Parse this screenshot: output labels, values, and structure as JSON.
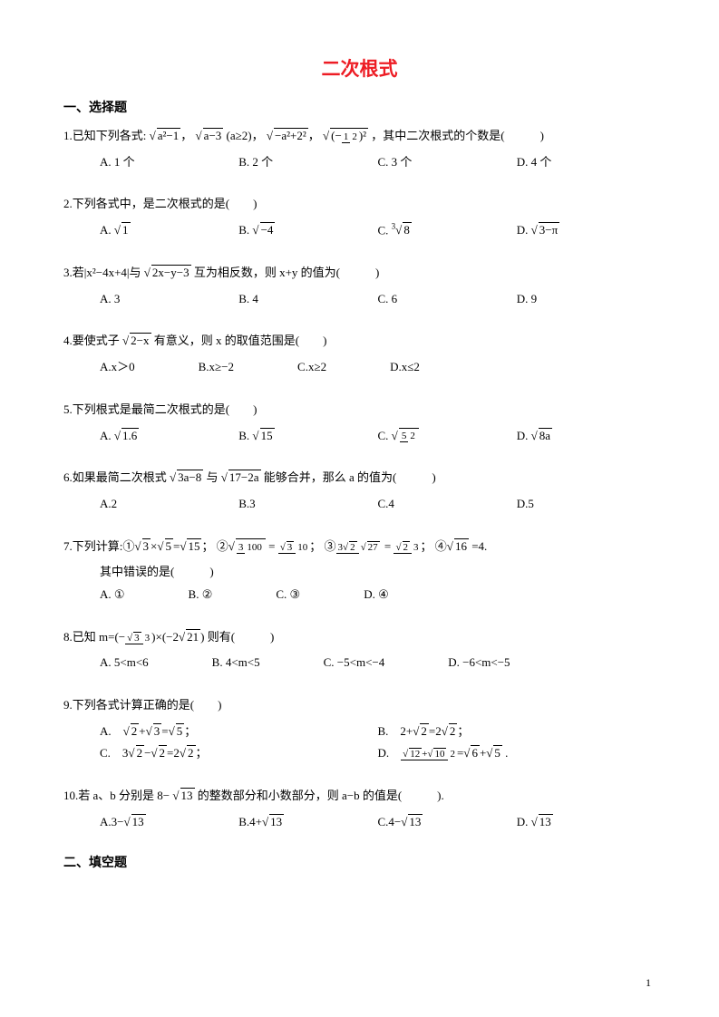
{
  "title": "二次根式",
  "section1": "一、选择题",
  "section2": "二、填空题",
  "page_number": "1",
  "q1": {
    "text_pre": "1.已知下列各式:",
    "expr1": "√(a²−1)",
    "expr2": "√(a−3)",
    "expr2_cond": " (a≥2)，",
    "expr3": "√(−a²+2²)",
    "expr4": "√(−1/2)²",
    "text_post": "，其中二次根式的个数是(　　　)",
    "A": "A. 1 个",
    "B": "B. 2 个",
    "C": "C. 3 个",
    "D": "D. 4 个"
  },
  "q2": {
    "text": "2.下列各式中，是二次根式的是(　　)",
    "A": "A. √1",
    "B": "B. √(−4)",
    "C": "C. ∛8",
    "D": "D. √(3−π)"
  },
  "q3": {
    "text_pre": "3.若|x²−4x+4|与",
    "expr": "√(2x−y−3)",
    "text_post": "互为相反数，则 x+y 的值为(　　　)",
    "A": "A. 3",
    "B": "B. 4",
    "C": "C. 6",
    "D": "D. 9"
  },
  "q4": {
    "text_pre": "4.要使式子",
    "expr": "√(2−x)",
    "text_post": "有意义，则 x 的取值范围是(　　)",
    "A": "A.x＞0",
    "B": "B.x≥−2",
    "C": "C.x≥2",
    "D": "D.x≤2"
  },
  "q5": {
    "text": "5.下列根式是最简二次根式的是(　　)",
    "A": "A. √1.6",
    "B": "B. √15",
    "C": "C. √(5/2)",
    "D": "D. √(8a)"
  },
  "q6": {
    "text_pre": "6.如果最简二次根式 ",
    "expr1": "√(3a−8)",
    "mid": " 与 ",
    "expr2": "√(17−2a)",
    "text_post": " 能够合并，那么 a 的值为(　　　)",
    "A": "A.2",
    "B": "B.3",
    "C": "C.4",
    "D": "D.5"
  },
  "q7": {
    "text": "7.下列计算:① √3×√5=√15；② √(3/100) = √3/10；③ (3√2)/√27 = √2/3；④ √16 =4.",
    "mid": "其中错误的是(　　　)",
    "A": "A. ①",
    "B": "B. ②",
    "C": "C. ③",
    "D": "D. ④"
  },
  "q8": {
    "text": "8.已知 m=(− √3/3)×(−2√21) 则有(　　　)",
    "A": "A. 5<m<6",
    "B": "B. 4<m<5",
    "C": "C. −5<m<−4",
    "D": "D. −6<m<−5"
  },
  "q9": {
    "text": "9.下列各式计算正确的是(　　)",
    "A": "A.　√2 + √3 = √5；",
    "B": "B.　2 + √2 = 2√2；",
    "C": "C.　3√2 − √2 = 2√2；",
    "D": "D.　(√12+√10)/2 = √6 + √5 ."
  },
  "q10": {
    "text_pre": "10.若 a、b 分别是 8−",
    "expr": "√13",
    "text_post": " 的整数部分和小数部分，则 a−b 的值是(　　　).",
    "A": "A.3−√13",
    "B": "B.4+√13",
    "C": "C.4−√13",
    "D": "D. √13"
  }
}
